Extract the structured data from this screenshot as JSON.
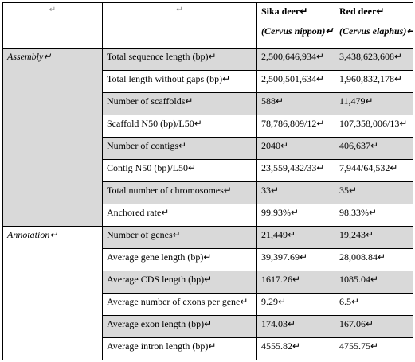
{
  "header": [
    [
      "↵"
    ],
    [
      "↵"
    ],
    [
      "Sika deer↵",
      "(Cervus nippon)↵"
    ],
    [
      "Red deer↵",
      "(Cervus elaphus)↵"
    ]
  ],
  "groups": [
    {
      "label": "Assembly↵",
      "rows": [
        [
          "Total sequence length (bp)↵",
          "2,500,646,934↵",
          "3,438,623,608↵"
        ],
        [
          "Total length without gaps (bp)↵",
          "2,500,501,634↵",
          "1,960,832,178↵"
        ],
        [
          "Number of scaffolds↵",
          "588↵",
          "11,479↵"
        ],
        [
          "Scaffold N50 (bp)/L50↵",
          "78,786,809/12↵",
          "107,358,006/13↵"
        ],
        [
          "Number of contigs↵",
          "2040↵",
          "406,637↵"
        ],
        [
          "Contig N50 (bp)/L50↵",
          "23,559,432/33↵",
          "7,944/64,532↵"
        ],
        [
          "Total number of chromosomes↵",
          "33↵",
          "35↵"
        ],
        [
          "Anchored rate↵",
          "99.93%↵",
          "98.33%↵"
        ]
      ]
    },
    {
      "label": "Annotation↵",
      "rows": [
        [
          "Number of genes↵",
          "21,449↵",
          "19,243↵"
        ],
        [
          "Average gene length (bp)↵",
          "39,397.69↵",
          "28,008.84↵"
        ],
        [
          "Average CDS length (bp)↵",
          "1617.26↵",
          "1085.04↵"
        ],
        [
          "Average number of exons per gene↵",
          "9.29↵",
          "6.5↵"
        ],
        [
          "Average exon length (bp)↵",
          "174.03↵",
          "167.06↵"
        ],
        [
          "Average intron length (bp)↵",
          "4555.82↵",
          "4755.75↵"
        ]
      ]
    }
  ]
}
